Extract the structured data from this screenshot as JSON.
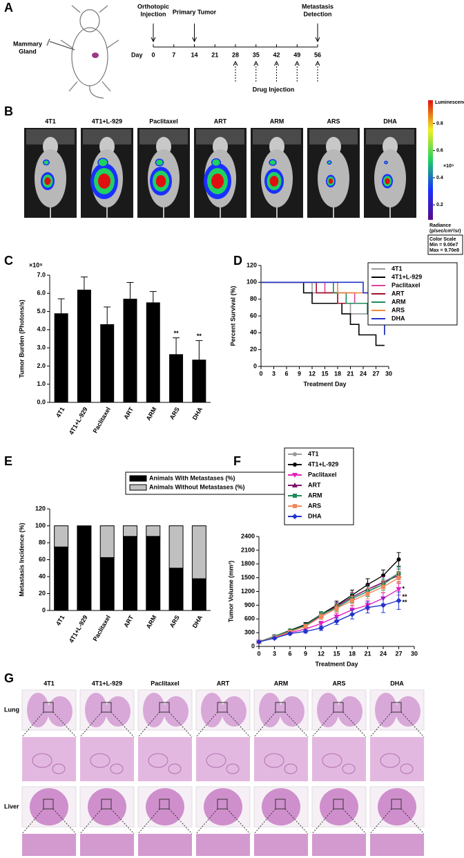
{
  "panel_labels": [
    "A",
    "B",
    "C",
    "D",
    "E",
    "F",
    "G"
  ],
  "timeline": {
    "site_label": [
      "Mammary",
      "Gland"
    ],
    "axis_label": "Day",
    "ticks": [
      0,
      7,
      14,
      21,
      28,
      35,
      42,
      49,
      56
    ],
    "events": [
      {
        "lines": [
          "Orthotopic",
          "Injection"
        ],
        "day": 0
      },
      {
        "lines": [
          "Primary Tumor"
        ],
        "day": 14
      },
      {
        "lines": [
          "Metastasis",
          "Detection"
        ],
        "day": 56
      }
    ],
    "drug_injection": {
      "label": "Drug Injection",
      "days": [
        28,
        35,
        42,
        49,
        56
      ]
    }
  },
  "imaging": {
    "groups": [
      "4T1",
      "4T1+L-929",
      "Paclitaxel",
      "ART",
      "ARM",
      "ARS",
      "DHA"
    ],
    "colorbar": {
      "title": "Luminescence",
      "lim": [
        0.09,
        0.97
      ],
      "ticks": [
        0.2,
        0.4,
        0.6,
        0.8
      ],
      "multiplier": "×10⁹",
      "unit_lines": [
        "Radiance",
        "(p/sec/cm²/sr)"
      ],
      "scale_lines": [
        "Color Scale",
        "Min = 9.00e7",
        "Max = 9.70e8"
      ]
    }
  },
  "chart_data": [
    {
      "type": "bar",
      "y_label": "Tumor Burden (Photons/s)",
      "multiplier": "×10⁹",
      "categories": [
        "4T1",
        "4T1+L-929",
        "Paclitaxel",
        "ART",
        "ARM",
        "ARS",
        "DHA"
      ],
      "values": [
        4.9,
        6.2,
        4.3,
        5.7,
        5.5,
        2.65,
        2.35
      ],
      "errors": [
        0.8,
        0.7,
        0.95,
        0.9,
        0.6,
        0.9,
        1.05
      ],
      "significance": [
        null,
        null,
        null,
        null,
        null,
        "**",
        "**"
      ],
      "color": "#000000",
      "ylim": [
        0,
        7
      ],
      "yticks": [
        {
          "value": 0,
          "label": "0.0"
        },
        {
          "value": 1,
          "label": "1.0"
        },
        {
          "value": 2,
          "label": "2.0"
        },
        {
          "value": 3,
          "label": "3.0"
        },
        {
          "value": 4,
          "label": "4.0"
        },
        {
          "value": 5,
          "label": "5.0"
        },
        {
          "value": 6,
          "label": "6.0"
        },
        {
          "value": 7,
          "label": "7.0"
        }
      ]
    },
    {
      "type": "step",
      "x_label": "Treatment Day",
      "y_label": "Percent Survival (%)",
      "xlim": [
        0,
        30
      ],
      "xticks": [
        0,
        3,
        6,
        9,
        12,
        15,
        18,
        21,
        24,
        27,
        30
      ],
      "ylim": [
        0,
        120
      ],
      "yticks": [
        0,
        20,
        40,
        60,
        80,
        100,
        120
      ],
      "series": [
        {
          "name": "4T1",
          "color": "#999999",
          "x": [
            0,
            12,
            18,
            21,
            27,
            29
          ],
          "values": [
            100,
            87.5,
            75,
            62.5,
            50,
            37.5
          ]
        },
        {
          "name": "4T1+L-929",
          "color": "#000000",
          "x": [
            0,
            10,
            12,
            19,
            21,
            23,
            27,
            29
          ],
          "values": [
            100,
            87.5,
            75,
            62.5,
            50,
            37.5,
            25,
            25
          ]
        },
        {
          "name": "Paclitaxel",
          "color": "#e040a0",
          "x": [
            0,
            15,
            22,
            27,
            29
          ],
          "values": [
            100,
            87.5,
            75,
            62.5,
            50
          ]
        },
        {
          "name": "ART",
          "color": "#a0102a",
          "x": [
            0,
            13,
            18,
            26,
            28,
            29
          ],
          "values": [
            100,
            87.5,
            75,
            62.5,
            50,
            37.5
          ]
        },
        {
          "name": "ARM",
          "color": "#1f8a5a",
          "x": [
            0,
            17,
            20,
            25,
            27,
            29
          ],
          "values": [
            100,
            87.5,
            75,
            62.5,
            50,
            37.5
          ]
        },
        {
          "name": "ARS",
          "color": "#f0883a",
          "x": [
            0,
            18,
            26,
            29
          ],
          "values": [
            100,
            87.5,
            75,
            75
          ]
        },
        {
          "name": "DHA",
          "color": "#2233cc",
          "x": [
            0,
            24,
            26,
            27,
            28,
            29
          ],
          "values": [
            100,
            87.5,
            75,
            62.5,
            50,
            37.5
          ]
        }
      ]
    },
    {
      "type": "stacked_bar",
      "y_label": "Metastasis Incidence (%)",
      "categories": [
        "4T1",
        "4T1+L-929",
        "Paclitaxel",
        "ART",
        "ARM",
        "ARS",
        "DHA"
      ],
      "series": [
        {
          "name": "Animals With Metastases (%)",
          "color": "#000000",
          "values": [
            75,
            100,
            62.5,
            87.5,
            87.5,
            50,
            37.5
          ]
        },
        {
          "name": "Animals Without Metastases (%)",
          "color": "#c0c0c0",
          "values": [
            25,
            0,
            37.5,
            12.5,
            12.5,
            50,
            62.5
          ]
        }
      ],
      "ylim": [
        0,
        120
      ],
      "yticks": [
        0,
        20,
        40,
        60,
        80,
        100,
        120
      ]
    },
    {
      "type": "line",
      "x_label": "Treatment Day",
      "y_label": "Tumor Volume (mm³)",
      "x": [
        0,
        3,
        6,
        9,
        12,
        15,
        18,
        21,
        24,
        27
      ],
      "xlim": [
        0,
        30
      ],
      "xticks": [
        0,
        3,
        6,
        9,
        12,
        15,
        18,
        21,
        24,
        27,
        30
      ],
      "ylim": [
        0,
        2400
      ],
      "yticks": [
        0,
        300,
        600,
        900,
        1200,
        1500,
        1800,
        2100,
        2400
      ],
      "series": [
        {
          "name": "4T1",
          "color": "#999999",
          "marker": "circle",
          "values": [
            100,
            200,
            320,
            450,
            650,
            850,
            1050,
            1200,
            1400,
            1600
          ],
          "errors": [
            15,
            20,
            30,
            40,
            60,
            80,
            100,
            110,
            120,
            130
          ]
        },
        {
          "name": "4T1+L-929",
          "color": "#000000",
          "marker": "circle",
          "values": [
            100,
            220,
            350,
            480,
            700,
            900,
            1120,
            1350,
            1550,
            1900
          ],
          "errors": [
            15,
            20,
            30,
            40,
            60,
            90,
            110,
            130,
            120,
            150
          ]
        },
        {
          "name": "Paclitaxel",
          "color": "#e020c0",
          "marker": "triangle-down",
          "values": [
            100,
            200,
            300,
            380,
            500,
            650,
            800,
            900,
            1050,
            1250
          ],
          "errors": [
            15,
            20,
            25,
            35,
            50,
            70,
            90,
            100,
            120,
            130
          ]
        },
        {
          "name": "ART",
          "color": "#80106a",
          "marker": "triangle",
          "values": [
            100,
            210,
            330,
            450,
            680,
            880,
            1080,
            1250,
            1400,
            1550
          ],
          "errors": [
            15,
            20,
            30,
            40,
            60,
            80,
            100,
            110,
            130,
            140
          ]
        },
        {
          "name": "ARM",
          "color": "#1f8a5a",
          "marker": "square",
          "values": [
            100,
            220,
            340,
            460,
            700,
            850,
            1050,
            1200,
            1350,
            1600
          ],
          "errors": [
            15,
            20,
            30,
            40,
            60,
            80,
            100,
            110,
            120,
            140
          ]
        },
        {
          "name": "ARS",
          "color": "#f0885a",
          "marker": "square",
          "values": [
            100,
            200,
            320,
            440,
            650,
            830,
            1000,
            1150,
            1300,
            1500
          ],
          "errors": [
            15,
            20,
            30,
            40,
            60,
            80,
            100,
            110,
            120,
            130
          ]
        },
        {
          "name": "DHA",
          "color": "#2233cc",
          "marker": "diamond",
          "values": [
            100,
            180,
            280,
            330,
            400,
            550,
            700,
            850,
            900,
            1000
          ],
          "errors": [
            15,
            20,
            25,
            35,
            50,
            70,
            100,
            120,
            160,
            190
          ]
        }
      ],
      "annotations": [
        {
          "text": "*",
          "x": 27,
          "y": 1250
        },
        {
          "text": "**",
          "x": 27,
          "y": 1080
        },
        {
          "text": "**",
          "x": 27,
          "y": 960
        }
      ]
    }
  ],
  "histology": {
    "groups": [
      "4T1",
      "4T1+L-929",
      "Paclitaxel",
      "ART",
      "ARM",
      "ARS",
      "DHA"
    ],
    "rows": [
      "Lung",
      "Liver"
    ]
  }
}
